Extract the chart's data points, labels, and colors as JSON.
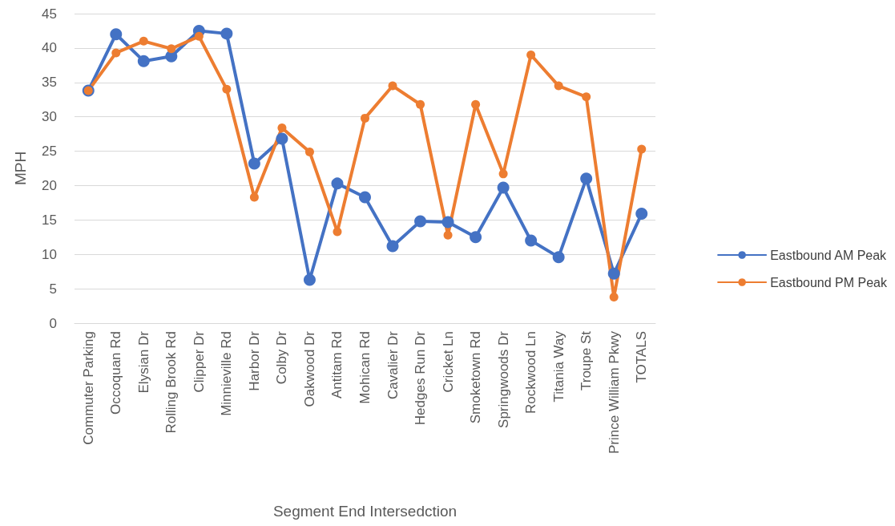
{
  "chart_data": {
    "type": "line",
    "xlabel": "Segment End Intersedction",
    "ylabel": "MPH",
    "categories": [
      "Commuter Parking",
      "Occoquan Rd",
      "Elysian Dr",
      "Rolling Brook Rd",
      "Clipper Dr",
      "Minnieville Rd",
      "Harbor Dr",
      "Colby Dr",
      "Oakwood Dr",
      "Antitam Rd",
      "Mohican Rd",
      "Cavalier Dr",
      "Hedges Run Dr",
      "Cricket Ln",
      "Smoketown Rd",
      "Springwoods Dr",
      "Rockwood Ln",
      "Titania Way",
      "Troupe St",
      "Prince William Pkwy",
      "TOTALS"
    ],
    "series": [
      {
        "name": "Eastbound AM Peak",
        "color": "#4472c4",
        "values": [
          33.8,
          42.0,
          38.1,
          38.8,
          42.5,
          42.1,
          23.2,
          26.8,
          6.3,
          20.3,
          18.3,
          11.2,
          14.8,
          14.7,
          12.5,
          19.7,
          12.0,
          9.6,
          21.0,
          7.2,
          15.9
        ]
      },
      {
        "name": "Eastbound PM Peak",
        "color": "#ed7d31",
        "values": [
          33.8,
          39.3,
          41.0,
          39.9,
          41.7,
          34.0,
          18.3,
          28.4,
          24.9,
          13.3,
          29.8,
          34.5,
          31.8,
          12.8,
          31.8,
          21.7,
          39.0,
          34.5,
          32.9,
          3.8,
          25.3
        ]
      }
    ],
    "ylim": [
      0,
      45
    ],
    "yticks": [
      0,
      5,
      10,
      15,
      20,
      25,
      30,
      35,
      40,
      45
    ],
    "grid": "y",
    "legend": "right",
    "marker": "circle",
    "line_style": "solid"
  }
}
